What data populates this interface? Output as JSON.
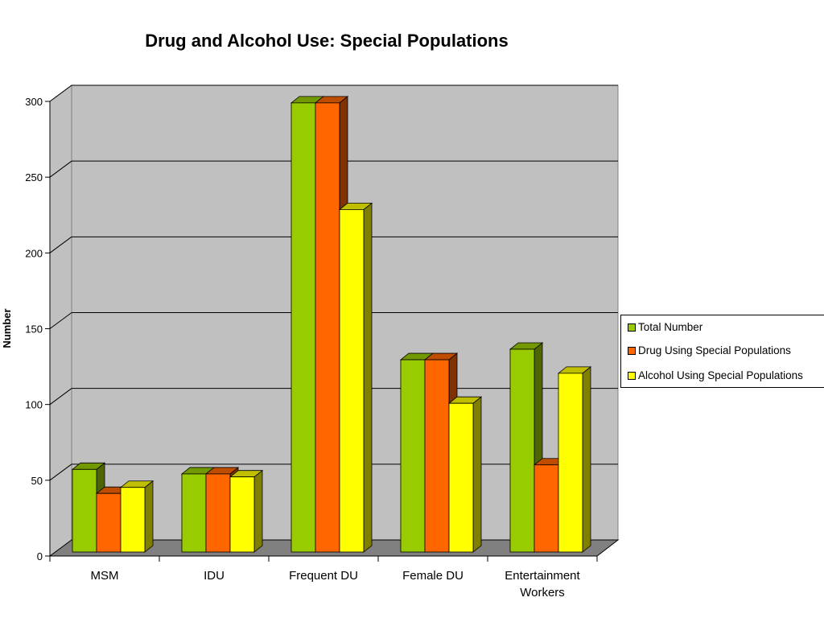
{
  "chart_data": {
    "type": "bar",
    "title": "Drug and Alcohol Use: Special Populations",
    "ylabel": "Number",
    "xlabel": "",
    "ylim": [
      0,
      300
    ],
    "yticks": [
      0,
      50,
      100,
      150,
      200,
      250,
      300
    ],
    "grid": true,
    "legend_position": "right",
    "categories": [
      "MSM",
      "IDU",
      "Frequent DU",
      "Female DU",
      "Entertainment Workers"
    ],
    "series": [
      {
        "name": "Total Number",
        "values": [
          55,
          52,
          299,
          128,
          135
        ],
        "color": "#99cc00"
      },
      {
        "name": "Drug Using Special Populations",
        "values": [
          39,
          52,
          299,
          128,
          58
        ],
        "color": "#ff6600"
      },
      {
        "name": "Alcohol Using Special Populations",
        "values": [
          43,
          50,
          228,
          99,
          119
        ],
        "color": "#ffff00"
      }
    ]
  }
}
